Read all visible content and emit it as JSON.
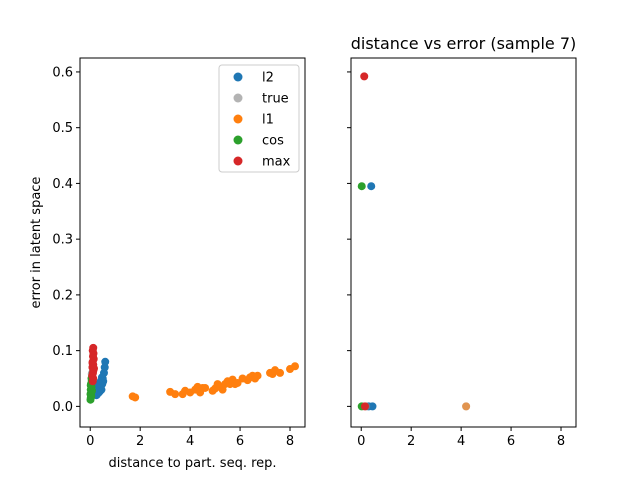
{
  "chart_data": [
    {
      "type": "scatter",
      "title": "",
      "xlabel": "distance to part. seq. rep.",
      "ylabel": "error in latent space",
      "xlim": [
        -0.41,
        8.6
      ],
      "ylim": [
        -0.037,
        0.625
      ],
      "xticks": [
        0,
        2,
        4,
        6,
        8
      ],
      "yticks": [
        0.0,
        0.1,
        0.2,
        0.3,
        0.4,
        0.5,
        0.6
      ],
      "ytick_labels": [
        "0.0",
        "0.1",
        "0.2",
        "0.3",
        "0.4",
        "0.5",
        "0.6"
      ],
      "grid": false,
      "legend": "top-right",
      "series": [
        {
          "name": "l2",
          "color": "#1f77b4",
          "points": [
            [
              0.45,
              0.03
            ],
            [
              0.4,
              0.028
            ],
            [
              0.35,
              0.025
            ],
            [
              0.3,
              0.027
            ],
            [
              0.48,
              0.04
            ],
            [
              0.42,
              0.045
            ],
            [
              0.5,
              0.05
            ],
            [
              0.55,
              0.06
            ],
            [
              0.58,
              0.07
            ],
            [
              0.6,
              0.08
            ],
            [
              0.38,
              0.032
            ],
            [
              0.33,
              0.036
            ],
            [
              0.47,
              0.052
            ],
            [
              0.52,
              0.045
            ],
            [
              0.28,
              0.022
            ],
            [
              0.25,
              0.02
            ],
            [
              0.44,
              0.038
            ],
            [
              0.36,
              0.041
            ]
          ]
        },
        {
          "name": "true",
          "color": "#808080",
          "alpha": 0.6,
          "points": [
            [
              0.08,
              0.06
            ],
            [
              0.1,
              0.062
            ],
            [
              0.06,
              0.058
            ],
            [
              0.12,
              0.065
            ],
            [
              0.09,
              0.07
            ],
            [
              0.07,
              0.055
            ]
          ]
        },
        {
          "name": "l1",
          "color": "#ff7f0e",
          "points": [
            [
              1.7,
              0.018
            ],
            [
              1.8,
              0.016
            ],
            [
              3.2,
              0.026
            ],
            [
              3.4,
              0.022
            ],
            [
              3.7,
              0.022
            ],
            [
              3.8,
              0.028
            ],
            [
              4.0,
              0.025
            ],
            [
              4.2,
              0.03
            ],
            [
              4.3,
              0.035
            ],
            [
              4.4,
              0.025
            ],
            [
              4.5,
              0.033
            ],
            [
              4.6,
              0.033
            ],
            [
              4.9,
              0.028
            ],
            [
              5.0,
              0.032
            ],
            [
              5.1,
              0.04
            ],
            [
              5.2,
              0.035
            ],
            [
              5.3,
              0.03
            ],
            [
              5.4,
              0.04
            ],
            [
              5.5,
              0.045
            ],
            [
              5.6,
              0.04
            ],
            [
              5.7,
              0.048
            ],
            [
              5.8,
              0.04
            ],
            [
              5.9,
              0.042
            ],
            [
              6.1,
              0.05
            ],
            [
              6.3,
              0.047
            ],
            [
              6.4,
              0.052
            ],
            [
              6.5,
              0.055
            ],
            [
              6.6,
              0.05
            ],
            [
              6.7,
              0.055
            ],
            [
              7.2,
              0.06
            ],
            [
              7.3,
              0.058
            ],
            [
              7.4,
              0.065
            ],
            [
              7.6,
              0.06
            ],
            [
              8.0,
              0.067
            ],
            [
              8.2,
              0.072
            ]
          ]
        },
        {
          "name": "cos",
          "color": "#2ca02c",
          "points": [
            [
              0.01,
              0.012
            ],
            [
              0.02,
              0.015
            ],
            [
              0.03,
              0.02
            ],
            [
              0.04,
              0.025
            ],
            [
              0.02,
              0.03
            ],
            [
              0.05,
              0.035
            ],
            [
              0.03,
              0.04
            ],
            [
              0.06,
              0.045
            ],
            [
              0.04,
              0.018
            ],
            [
              0.01,
              0.022
            ],
            [
              0.07,
              0.028
            ],
            [
              0.02,
              0.038
            ],
            [
              0.05,
              0.05
            ]
          ]
        },
        {
          "name": "max",
          "color": "#d62728",
          "points": [
            [
              0.1,
              0.045
            ],
            [
              0.12,
              0.05
            ],
            [
              0.08,
              0.055
            ],
            [
              0.11,
              0.06
            ],
            [
              0.13,
              0.065
            ],
            [
              0.09,
              0.07
            ],
            [
              0.12,
              0.075
            ],
            [
              0.1,
              0.08
            ],
            [
              0.14,
              0.085
            ],
            [
              0.11,
              0.09
            ],
            [
              0.13,
              0.095
            ],
            [
              0.1,
              0.1
            ],
            [
              0.12,
              0.105
            ],
            [
              0.09,
              0.078
            ],
            [
              0.15,
              0.068
            ]
          ]
        }
      ]
    },
    {
      "type": "scatter",
      "title": "distance vs error (sample 7)",
      "xlabel": "",
      "ylabel": "",
      "xlim": [
        -0.41,
        8.6
      ],
      "ylim": [
        -0.037,
        0.625
      ],
      "xticks": [
        0,
        2,
        4,
        6,
        8
      ],
      "yticks": [
        0.0,
        0.1,
        0.2,
        0.3,
        0.4,
        0.5,
        0.6
      ],
      "grid": false,
      "series": [
        {
          "name": "l2",
          "color": "#1f77b4",
          "points": [
            [
              0.4,
              0.395
            ],
            [
              0.45,
              0.0
            ],
            [
              0.3,
              0.0
            ]
          ]
        },
        {
          "name": "true",
          "color": "#808080",
          "alpha": 0.6,
          "points": [
            [
              0.2,
              0.0
            ],
            [
              4.2,
              0.0
            ]
          ]
        },
        {
          "name": "l1",
          "color": "#ff7f0e",
          "alpha": 0.6,
          "points": [
            [
              4.2,
              0.0
            ]
          ]
        },
        {
          "name": "cos",
          "color": "#2ca02c",
          "points": [
            [
              0.02,
              0.395
            ],
            [
              0.02,
              0.0
            ]
          ]
        },
        {
          "name": "max",
          "color": "#d62728",
          "points": [
            [
              0.12,
              0.592
            ],
            [
              0.15,
              0.0
            ]
          ]
        }
      ]
    }
  ]
}
